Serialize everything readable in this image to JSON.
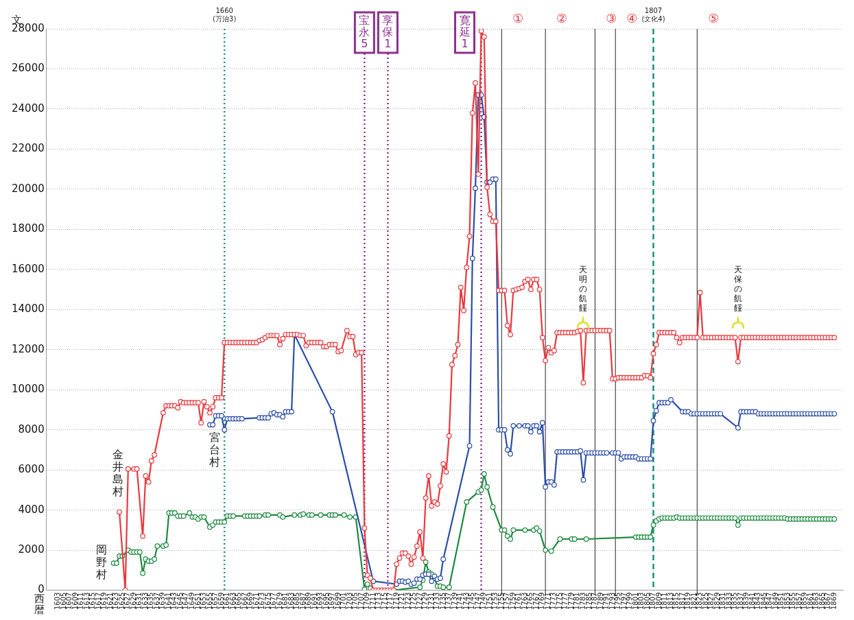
{
  "chart_data": {
    "type": "line",
    "ylabel": "文",
    "xlabel": "西暦",
    "xlim": [
      1599,
      1872
    ],
    "ylim": [
      0,
      28000
    ],
    "yticks": [
      0,
      2000,
      4000,
      6000,
      8000,
      10000,
      12000,
      14000,
      16000,
      18000,
      20000,
      22000,
      24000,
      26000,
      28000
    ],
    "xticks": [
      1603,
      1605,
      1607,
      1609,
      1611,
      1613,
      1615,
      1617,
      1619,
      1621,
      1623,
      1625,
      1627,
      1629,
      1631,
      1633,
      1635,
      1637,
      1639,
      1641,
      1643,
      1645,
      1647,
      1649,
      1651,
      1653,
      1655,
      1657,
      1659,
      1661,
      1663,
      1665,
      1667,
      1669,
      1671,
      1673,
      1675,
      1677,
      1679,
      1681,
      1683,
      1685,
      1687,
      1689,
      1691,
      1693,
      1695,
      1697,
      1699,
      1701,
      1703,
      1705,
      1707,
      1709,
      1711,
      1713,
      1715,
      1717,
      1719,
      1721,
      1723,
      1725,
      1727,
      1729,
      1731,
      1733,
      1735,
      1737,
      1739,
      1741,
      1743,
      1745,
      1747,
      1749,
      1751,
      1753,
      1755,
      1757,
      1759,
      1761,
      1763,
      1765,
      1767,
      1769,
      1771,
      1773,
      1775,
      1777,
      1779,
      1781,
      1783,
      1785,
      1787,
      1789,
      1791,
      1793,
      1795,
      1797,
      1799,
      1801,
      1803,
      1805,
      1807,
      1809,
      1811,
      1813,
      1815,
      1817,
      1819,
      1821,
      1823,
      1825,
      1827,
      1829,
      1831,
      1833,
      1835,
      1837,
      1839,
      1841,
      1843,
      1845,
      1847,
      1849,
      1851,
      1853,
      1855,
      1857,
      1859,
      1861,
      1863,
      1865,
      1867,
      1869
    ],
    "grid": "y",
    "legend": false,
    "marker": "circle",
    "line_style": "solid",
    "series": [
      {
        "name": "金井島村",
        "color": "#e8383d",
        "x": [
          1624,
          1626,
          1627,
          1629,
          1630,
          1632,
          1633,
          1634,
          1635,
          1636,
          1639,
          1640,
          1641,
          1642,
          1643,
          1644,
          1645,
          1646,
          1647,
          1648,
          1649,
          1650,
          1651,
          1652,
          1653,
          1654,
          1655,
          1656,
          1657,
          1658,
          1659,
          1660,
          1661,
          1662,
          1663,
          1664,
          1665,
          1666,
          1667,
          1668,
          1669,
          1670,
          1671,
          1672,
          1673,
          1674,
          1675,
          1676,
          1677,
          1678,
          1679,
          1680,
          1681,
          1682,
          1683,
          1684,
          1685,
          1686,
          1687,
          1688,
          1689,
          1690,
          1691,
          1692,
          1693,
          1694,
          1695,
          1696,
          1697,
          1698,
          1699,
          1700,
          1702,
          1703,
          1704,
          1705,
          1706,
          1707,
          1708,
          1709,
          1710,
          1711,
          1712,
          1713,
          1714,
          1715,
          1716,
          1717,
          1718,
          1719,
          1720,
          1721,
          1722,
          1723,
          1724,
          1725,
          1726,
          1727,
          1728,
          1729,
          1730,
          1731,
          1732,
          1733,
          1734,
          1735,
          1736,
          1737,
          1738,
          1739,
          1740,
          1741,
          1742,
          1743,
          1744,
          1745,
          1746,
          1747,
          1748,
          1749,
          1750,
          1751,
          1752,
          1753,
          1754,
          1755,
          1756,
          1757,
          1758,
          1759,
          1760,
          1761,
          1762,
          1763,
          1764,
          1765,
          1766,
          1767,
          1768,
          1769,
          1770,
          1771,
          1772,
          1773,
          1774,
          1775,
          1776,
          1777,
          1778,
          1779,
          1780,
          1781,
          1782,
          1783,
          1784,
          1785,
          1786,
          1787,
          1788,
          1789,
          1790,
          1791,
          1792,
          1793,
          1794,
          1795,
          1796,
          1797,
          1798,
          1799,
          1800,
          1801,
          1802,
          1803,
          1804,
          1805,
          1806,
          1807,
          1808,
          1809,
          1810,
          1811,
          1812,
          1813,
          1814,
          1815,
          1816,
          1817,
          1818,
          1819,
          1820,
          1821,
          1822,
          1823,
          1824,
          1825,
          1826,
          1827,
          1828,
          1829,
          1830,
          1831,
          1832,
          1833,
          1834,
          1835,
          1836,
          1837,
          1838,
          1839,
          1840,
          1841,
          1842,
          1843,
          1844,
          1845,
          1846,
          1847,
          1848,
          1849,
          1850,
          1851,
          1852,
          1853,
          1854,
          1855,
          1856,
          1857,
          1858,
          1859,
          1860,
          1861,
          1862,
          1863,
          1864,
          1865,
          1866,
          1867,
          1868,
          1869
        ],
        "values": [
          3900,
          0,
          6050,
          6050,
          6050,
          2700,
          5700,
          5400,
          6450,
          6750,
          8850,
          9200,
          9200,
          9200,
          9200,
          9100,
          9400,
          9350,
          9350,
          9350,
          9350,
          9350,
          9350,
          8350,
          9400,
          9150,
          8850,
          9150,
          9600,
          9600,
          9600,
          12350,
          12350,
          12350,
          12350,
          12350,
          12350,
          12350,
          12350,
          12350,
          12350,
          12350,
          12350,
          12450,
          12500,
          12600,
          12700,
          12700,
          12700,
          12700,
          12250,
          12550,
          12750,
          12750,
          12750,
          12750,
          12750,
          12700,
          12700,
          12200,
          12350,
          12350,
          12350,
          12350,
          12350,
          12150,
          12150,
          12250,
          12250,
          12250,
          11900,
          11950,
          12950,
          12650,
          12650,
          11750,
          11850,
          11850,
          3100,
          750,
          600,
          0,
          0,
          0,
          0,
          0,
          0,
          0,
          0,
          1300,
          1600,
          1850,
          1850,
          1700,
          1300,
          1650,
          2200,
          2900,
          1600,
          4600,
          5700,
          4200,
          4400,
          4300,
          5200,
          6300,
          5900,
          7700,
          11250,
          11700,
          12250,
          15100,
          13950,
          16100,
          17650,
          23800,
          25300,
          20750,
          27900,
          27600,
          20100,
          18750,
          18400,
          18400,
          14950,
          14950,
          14950,
          13200,
          12750,
          14950,
          15000,
          15050,
          15100,
          15400,
          15500,
          15000,
          15500,
          15500,
          15000,
          12600,
          11450,
          12100,
          11850,
          11950,
          12850,
          12850,
          12850,
          12850,
          12850,
          12850,
          12850,
          12900,
          12950,
          10350,
          12950,
          12950,
          12950,
          12950,
          12950,
          12950,
          12950,
          12950,
          12950,
          10550,
          10550,
          10600,
          10600,
          10600,
          10600,
          10600,
          10600,
          10600,
          10600,
          10600,
          10700,
          10700,
          10600,
          11800,
          12250,
          12850,
          12850,
          12850,
          12850,
          12850,
          12850,
          12600,
          12350,
          12600,
          12600,
          12600,
          12600,
          12600,
          12600,
          14850,
          12600,
          12600,
          12600,
          12600,
          12600,
          12600,
          12600,
          12600,
          12600,
          12600,
          12600,
          12600,
          11400,
          12600,
          12600,
          12600,
          12600,
          12600,
          12600,
          12600,
          12600,
          12600,
          12600,
          12600,
          12600,
          12600,
          12600,
          12600,
          12600,
          12600,
          12600,
          12600,
          12600,
          12600,
          12600,
          12600,
          12600,
          12600,
          12600,
          12600,
          12600,
          12600,
          12600,
          12600,
          12600,
          12600
        ]
      },
      {
        "name": "宮台村",
        "color": "#2a4ea6",
        "x": [
          1655,
          1656,
          1657,
          1658,
          1659,
          1660,
          1661,
          1662,
          1663,
          1664,
          1665,
          1666,
          1672,
          1673,
          1674,
          1675,
          1676,
          1677,
          1678,
          1679,
          1680,
          1681,
          1682,
          1683,
          1684,
          1697,
          1711,
          1719,
          1720,
          1721,
          1722,
          1723,
          1724,
          1725,
          1726,
          1727,
          1728,
          1729,
          1730,
          1731,
          1732,
          1733,
          1734,
          1735,
          1744,
          1745,
          1746,
          1747,
          1748,
          1749,
          1750,
          1751,
          1752,
          1753,
          1754,
          1755,
          1756,
          1757,
          1758,
          1759,
          1761,
          1763,
          1764,
          1765,
          1766,
          1767,
          1768,
          1769,
          1770,
          1771,
          1772,
          1773,
          1774,
          1775,
          1776,
          1777,
          1778,
          1779,
          1780,
          1781,
          1782,
          1783,
          1784,
          1785,
          1786,
          1787,
          1788,
          1789,
          1790,
          1791,
          1793,
          1794,
          1795,
          1796,
          1797,
          1798,
          1799,
          1800,
          1801,
          1802,
          1803,
          1804,
          1805,
          1806,
          1807,
          1808,
          1809,
          1810,
          1811,
          1812,
          1813,
          1817,
          1818,
          1819,
          1820,
          1821,
          1822,
          1823,
          1824,
          1825,
          1826,
          1827,
          1828,
          1829,
          1830,
          1836,
          1837,
          1838,
          1839,
          1840,
          1841,
          1842,
          1843,
          1844,
          1845,
          1846,
          1847,
          1848,
          1849,
          1850,
          1851,
          1852,
          1853,
          1854,
          1855,
          1856,
          1857,
          1858,
          1859,
          1860,
          1861,
          1862,
          1863,
          1864,
          1865,
          1866,
          1867,
          1868,
          1869
        ],
        "values": [
          8250,
          8250,
          8700,
          8700,
          8700,
          8000,
          8550,
          8550,
          8550,
          8550,
          8550,
          8550,
          8600,
          8600,
          8600,
          8600,
          8800,
          8850,
          8750,
          8750,
          8650,
          8900,
          8900,
          8900,
          12750,
          8900,
          450,
          300,
          450,
          450,
          400,
          450,
          300,
          350,
          550,
          550,
          750,
          800,
          800,
          450,
          700,
          550,
          600,
          1550,
          7200,
          16550,
          20050,
          24700,
          24700,
          23600,
          20350,
          20350,
          20500,
          20500,
          8000,
          8000,
          8000,
          7000,
          6800,
          8200,
          8200,
          8200,
          8200,
          7900,
          8200,
          8200,
          7900,
          8350,
          5150,
          5400,
          5400,
          5250,
          6900,
          6900,
          6900,
          6900,
          6900,
          6900,
          6900,
          6900,
          6950,
          5500,
          6850,
          6850,
          6850,
          6850,
          6850,
          6850,
          6850,
          6850,
          6850,
          6850,
          6850,
          6550,
          6650,
          6650,
          6650,
          6650,
          6650,
          6550,
          6550,
          6550,
          6550,
          6550,
          8450,
          8950,
          9350,
          9350,
          9350,
          9350,
          9500,
          8900,
          8900,
          8900,
          8800,
          8800,
          8800,
          8800,
          8800,
          8800,
          8800,
          8800,
          8800,
          8800,
          8800,
          8100,
          8900,
          8900,
          8900,
          8900,
          8900,
          8900,
          8800,
          8800,
          8800,
          8800,
          8800,
          8800,
          8800,
          8800,
          8800,
          8800,
          8800,
          8800,
          8800,
          8800,
          8800,
          8800,
          8800,
          8800,
          8800,
          8800,
          8800,
          8800,
          8800,
          8800,
          8800,
          8800,
          8800
        ]
      },
      {
        "name": "岡野村",
        "color": "#1a8a3e",
        "x": [
          1622,
          1623,
          1624,
          1625,
          1627,
          1628,
          1629,
          1630,
          1631,
          1632,
          1633,
          1634,
          1635,
          1636,
          1637,
          1639,
          1640,
          1641,
          1642,
          1643,
          1644,
          1645,
          1646,
          1648,
          1649,
          1650,
          1651,
          1652,
          1653,
          1655,
          1656,
          1657,
          1658,
          1659,
          1660,
          1661,
          1662,
          1663,
          1667,
          1668,
          1669,
          1670,
          1671,
          1672,
          1674,
          1675,
          1679,
          1680,
          1684,
          1686,
          1687,
          1689,
          1690,
          1693,
          1696,
          1697,
          1698,
          1701,
          1703,
          1705,
          1708,
          1709,
          1710,
          1711,
          1713,
          1714,
          1715,
          1716,
          1717,
          1718,
          1727,
          1728,
          1729,
          1730,
          1731,
          1732,
          1733,
          1734,
          1735,
          1737,
          1743,
          1747,
          1748,
          1749,
          1750,
          1752,
          1755,
          1756,
          1757,
          1758,
          1759,
          1763,
          1766,
          1767,
          1768,
          1770,
          1772,
          1775,
          1779,
          1780,
          1784,
          1801,
          1802,
          1803,
          1804,
          1805,
          1806,
          1807,
          1808,
          1809,
          1810,
          1811,
          1812,
          1813,
          1814,
          1815,
          1816,
          1817,
          1818,
          1819,
          1820,
          1821,
          1822,
          1823,
          1824,
          1825,
          1826,
          1827,
          1828,
          1829,
          1830,
          1831,
          1832,
          1833,
          1834,
          1835,
          1836,
          1837,
          1838,
          1839,
          1840,
          1841,
          1842,
          1843,
          1844,
          1845,
          1846,
          1847,
          1848,
          1849,
          1850,
          1851,
          1852,
          1853,
          1854,
          1855,
          1856,
          1857,
          1858,
          1859,
          1860,
          1861,
          1862,
          1863,
          1864,
          1865,
          1866,
          1867,
          1868,
          1869
        ],
        "values": [
          1350,
          1350,
          1700,
          1700,
          2000,
          1900,
          1900,
          1900,
          1900,
          850,
          1550,
          1450,
          1450,
          1550,
          2200,
          2200,
          2250,
          3850,
          3850,
          3850,
          3700,
          3700,
          3700,
          3850,
          3650,
          3650,
          3550,
          3650,
          3650,
          3150,
          3250,
          3400,
          3400,
          3400,
          3400,
          3700,
          3700,
          3700,
          3700,
          3700,
          3700,
          3700,
          3700,
          3700,
          3750,
          3750,
          3750,
          3650,
          3750,
          3750,
          3800,
          3750,
          3750,
          3750,
          3750,
          3750,
          3750,
          3750,
          3650,
          3650,
          50,
          300,
          100,
          0,
          0,
          0,
          0,
          0,
          0,
          0,
          150,
          500,
          1400,
          900,
          800,
          600,
          200,
          200,
          150,
          150,
          4400,
          4900,
          5000,
          5800,
          5150,
          4150,
          3000,
          3000,
          2700,
          2550,
          3000,
          3000,
          3000,
          3100,
          2950,
          2000,
          1950,
          2550,
          2550,
          2550,
          2550,
          2650,
          2650,
          2650,
          2650,
          2650,
          2650,
          3250,
          3450,
          3550,
          3600,
          3600,
          3600,
          3600,
          3600,
          3650,
          3600,
          3600,
          3600,
          3600,
          3600,
          3600,
          3600,
          3600,
          3600,
          3600,
          3600,
          3600,
          3600,
          3600,
          3600,
          3600,
          3600,
          3600,
          3600,
          3600,
          3250,
          3600,
          3600,
          3600,
          3600,
          3600,
          3600,
          3600,
          3600,
          3600,
          3600,
          3600,
          3600,
          3600,
          3600,
          3600,
          3600,
          3550,
          3550,
          3550,
          3550,
          3550,
          3550,
          3550,
          3550,
          3550,
          3550,
          3550,
          3550,
          3550,
          3550,
          3550,
          3550,
          3550
        ]
      }
    ],
    "ref_lines": [
      {
        "axis": "x",
        "value": 1660,
        "label": "1660\n(万治3)",
        "color": "#1a9080",
        "line_style": "dotted"
      },
      {
        "axis": "x",
        "value": 1708,
        "label": "宝永5",
        "color": "#8e2f8e",
        "line_style": "dotted"
      },
      {
        "axis": "x",
        "value": 1716,
        "label": "享保1",
        "color": "#8e2f8e",
        "line_style": "dotted"
      },
      {
        "axis": "x",
        "value": 1748,
        "label": "寛延1",
        "color": "#8e2f8e",
        "line_style": "dotted"
      },
      {
        "axis": "x",
        "value": 1755,
        "label": "①",
        "color": "#222222",
        "line_style": "solid"
      },
      {
        "axis": "x",
        "value": 1770,
        "label": "②",
        "color": "#222222",
        "line_style": "solid"
      },
      {
        "axis": "x",
        "value": 1787,
        "label": "③",
        "color": "#222222",
        "line_style": "solid"
      },
      {
        "axis": "x",
        "value": 1794,
        "label": "④",
        "color": "#222222",
        "line_style": "solid"
      },
      {
        "axis": "x",
        "value": 1807,
        "label": "1807\n(文化4)",
        "color": "#1a9080",
        "line_style": "dashed"
      },
      {
        "axis": "x",
        "value": 1822,
        "label": "⑤",
        "color": "#222222",
        "line_style": "solid"
      }
    ],
    "annotations": [
      "天明の飢饉",
      "天保の飢饉"
    ]
  }
}
